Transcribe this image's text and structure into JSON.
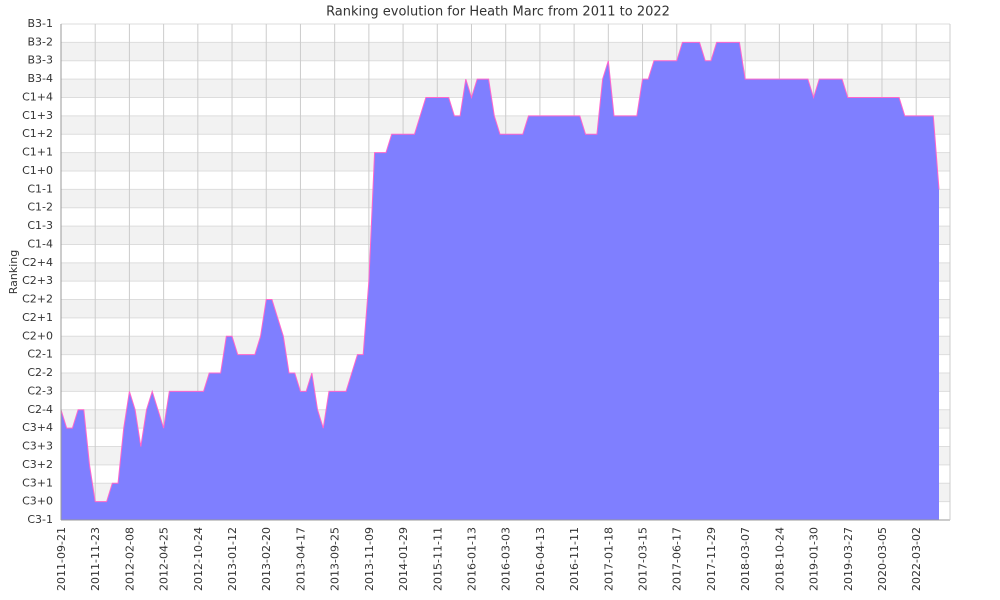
{
  "chart_data": {
    "type": "area",
    "title": "Ranking evolution for Heath Marc from 2011 to 2022",
    "y_label": "Ranking",
    "categories": [
      "2011-09-21",
      null,
      null,
      null,
      null,
      null,
      "2011-11-23",
      null,
      null,
      null,
      null,
      null,
      "2012-02-08",
      null,
      null,
      null,
      null,
      null,
      "2012-04-25",
      null,
      null,
      null,
      null,
      null,
      "2012-10-24",
      null,
      null,
      null,
      null,
      null,
      "2013-01-12",
      null,
      null,
      null,
      null,
      null,
      "2013-02-20",
      null,
      null,
      null,
      null,
      null,
      "2013-04-17",
      null,
      null,
      null,
      null,
      null,
      "2013-09-25",
      null,
      null,
      null,
      null,
      null,
      "2013-11-09",
      null,
      null,
      null,
      null,
      null,
      "2014-01-29",
      null,
      null,
      null,
      null,
      null,
      "2015-11-11",
      null,
      null,
      null,
      null,
      null,
      "2016-01-13",
      null,
      null,
      null,
      null,
      null,
      "2016-03-03",
      null,
      null,
      null,
      null,
      null,
      "2016-04-13",
      null,
      null,
      null,
      null,
      null,
      "2016-11-11",
      null,
      null,
      null,
      null,
      null,
      "2017-01-18",
      null,
      null,
      null,
      null,
      null,
      "2017-03-15",
      null,
      null,
      null,
      null,
      null,
      "2017-06-17",
      null,
      null,
      null,
      null,
      null,
      "2017-11-29",
      null,
      null,
      null,
      null,
      null,
      "2018-03-07",
      null,
      null,
      null,
      null,
      null,
      "2018-10-24",
      null,
      null,
      null,
      null,
      null,
      "2019-01-30",
      null,
      null,
      null,
      null,
      null,
      "2019-03-27",
      null,
      null,
      null,
      null,
      null,
      "2020-03-05",
      null,
      null,
      null,
      null,
      null,
      "2022-03-02",
      null,
      null,
      null,
      null
    ],
    "values": [
      6,
      5,
      5,
      6,
      6,
      3,
      1,
      1,
      1,
      2,
      2,
      5,
      7,
      6,
      4,
      6,
      7,
      6,
      5,
      7,
      7,
      7,
      7,
      7,
      7,
      7,
      8,
      8,
      8,
      10,
      10,
      9,
      9,
      9,
      9,
      10,
      12,
      12,
      11,
      10,
      8,
      8,
      7,
      7,
      8,
      6,
      5,
      7,
      7,
      7,
      7,
      8,
      9,
      9,
      13,
      20,
      20,
      20,
      21,
      21,
      21,
      21,
      21,
      22,
      23,
      23,
      23,
      23,
      23,
      22,
      22,
      24,
      23,
      24,
      24,
      24,
      22,
      21,
      21,
      21,
      21,
      21,
      22,
      22,
      22,
      22,
      22,
      22,
      22,
      22,
      22,
      22,
      21,
      21,
      21,
      24,
      25,
      22,
      22,
      22,
      22,
      22,
      24,
      24,
      25,
      25,
      25,
      25,
      25,
      26,
      26,
      26,
      26,
      25,
      25,
      26,
      26,
      26,
      26,
      26,
      24,
      24,
      24,
      24,
      24,
      24,
      24,
      24,
      24,
      24,
      24,
      24,
      23,
      24,
      24,
      24,
      24,
      24,
      23,
      23,
      23,
      23,
      23,
      23,
      23,
      23,
      23,
      23,
      22,
      22,
      22,
      22,
      22,
      22,
      18
    ],
    "color": "#7f7fff",
    "line_color": "#ff66cc",
    "ylim": [
      0,
      27
    ],
    "yticks": [
      {
        "value": 0,
        "label": "C3-1"
      },
      {
        "value": 1,
        "label": "C3+0"
      },
      {
        "value": 2,
        "label": "C3+1"
      },
      {
        "value": 3,
        "label": "C3+2"
      },
      {
        "value": 4,
        "label": "C3+3"
      },
      {
        "value": 5,
        "label": "C3+4"
      },
      {
        "value": 6,
        "label": "C2-4"
      },
      {
        "value": 7,
        "label": "C2-3"
      },
      {
        "value": 8,
        "label": "C2-2"
      },
      {
        "value": 9,
        "label": "C2-1"
      },
      {
        "value": 10,
        "label": "C2+0"
      },
      {
        "value": 11,
        "label": "C2+1"
      },
      {
        "value": 12,
        "label": "C2+2"
      },
      {
        "value": 13,
        "label": "C2+3"
      },
      {
        "value": 14,
        "label": "C2+4"
      },
      {
        "value": 15,
        "label": "C1-4"
      },
      {
        "value": 16,
        "label": "C1-3"
      },
      {
        "value": 17,
        "label": "C1-2"
      },
      {
        "value": 18,
        "label": "C1-1"
      },
      {
        "value": 19,
        "label": "C1+0"
      },
      {
        "value": 20,
        "label": "C1+1"
      },
      {
        "value": 21,
        "label": "C1+2"
      },
      {
        "value": 22,
        "label": "C1+3"
      },
      {
        "value": 23,
        "label": "C1+4"
      },
      {
        "value": 24,
        "label": "B3-4"
      },
      {
        "value": 25,
        "label": "B3-3"
      },
      {
        "value": 26,
        "label": "B3-2"
      },
      {
        "value": 27,
        "label": "B3-1"
      }
    ],
    "grid": true
  }
}
